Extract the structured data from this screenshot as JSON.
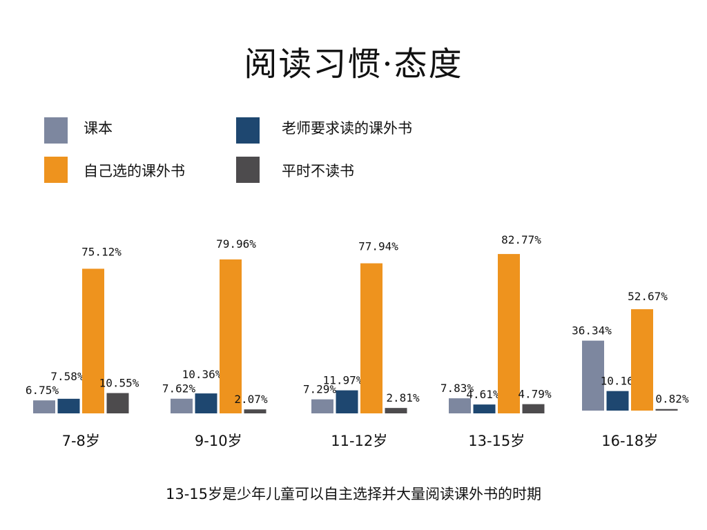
{
  "title": "阅读习惯·态度",
  "legend": [
    {
      "label": "课本",
      "color": "#7d879f"
    },
    {
      "label": "老师要求读的课外书",
      "color": "#1e4770"
    },
    {
      "label": "自己选的课外书",
      "color": "#ee931e"
    },
    {
      "label": "平时不读书",
      "color": "#4d4b4d"
    }
  ],
  "chart_data": {
    "type": "bar",
    "categories": [
      "7-8岁",
      "9-10岁",
      "11-12岁",
      "13-15岁",
      "16-18岁"
    ],
    "series": [
      {
        "name": "课本",
        "color": "#7d879f",
        "values": [
          6.75,
          7.62,
          7.29,
          7.83,
          36.34
        ]
      },
      {
        "name": "老师要求读的课外书",
        "color": "#1e4770",
        "values": [
          7.58,
          10.36,
          11.97,
          4.61,
          10.16
        ]
      },
      {
        "name": "自己选的课外书",
        "color": "#ee931e",
        "values": [
          75.12,
          79.96,
          77.94,
          82.77,
          52.67
        ]
      },
      {
        "name": "平时不读书",
        "color": "#4d4b4d",
        "values": [
          10.55,
          2.07,
          2.81,
          4.79,
          0.82
        ]
      }
    ],
    "data_labels": [
      [
        "6.75%",
        "7.58%",
        "75.12%",
        "10.55%"
      ],
      [
        "7.62%",
        "10.36%",
        "79.96%",
        "2.07%"
      ],
      [
        "7.29%",
        "11.97%",
        "77.94%",
        "2.81%"
      ],
      [
        "7.83%",
        "4.61%",
        "82.77%",
        "4.79%"
      ],
      [
        "36.34%",
        "10.16%",
        "52.67%",
        "0.82%"
      ]
    ],
    "ylim": [
      0,
      100
    ],
    "legend_position": "top",
    "grid": false
  },
  "note": "13-15岁是少年儿童可以自主选择并大量阅读课外书的时期"
}
